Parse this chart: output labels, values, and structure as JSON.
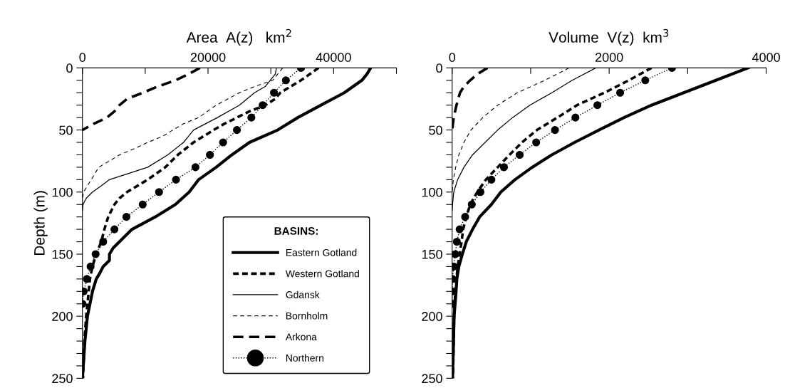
{
  "chart_data": [
    {
      "type": "line",
      "xlabel": "Area  A(z)   km$^{2}$",
      "ylabel": "Depth (m)",
      "legend_title": "BASINS:",
      "legend": "bottom right",
      "grid": false,
      "xlim": [
        0,
        50000
      ],
      "xticks": [
        0,
        {
          "value": 10000,
          "label": null
        },
        20000,
        {
          "value": 30000,
          "label": null
        },
        40000,
        {
          "value": 50000,
          "label": null
        }
      ],
      "ylim": [
        250,
        0
      ],
      "yticks": [
        0,
        {
          "value": 10,
          "label": null
        },
        {
          "value": 20,
          "label": null
        },
        {
          "value": 30,
          "label": null
        },
        {
          "value": 40,
          "label": null
        },
        50,
        {
          "value": 60,
          "label": null
        },
        {
          "value": 70,
          "label": null
        },
        {
          "value": 80,
          "label": null
        },
        {
          "value": 90,
          "label": null
        },
        100,
        {
          "value": 110,
          "label": null
        },
        {
          "value": 120,
          "label": null
        },
        {
          "value": 130,
          "label": null
        },
        {
          "value": 140,
          "label": null
        },
        150,
        {
          "value": 160,
          "label": null
        },
        {
          "value": 170,
          "label": null
        },
        {
          "value": 180,
          "label": null
        },
        {
          "value": 190,
          "label": null
        },
        200,
        {
          "value": 210,
          "label": null
        },
        {
          "value": 220,
          "label": null
        },
        {
          "value": 230,
          "label": null
        },
        {
          "value": 240,
          "label": null
        },
        250
      ],
      "series": [
        {
          "name": "Eastern Gotland",
          "color": "#000000",
          "line_style": "solid",
          "marker": "none",
          "x": [
            45900,
            45300,
            44500,
            41700,
            38000,
            34300,
            31100,
            26600,
            23800,
            21300,
            18500,
            17000,
            14800,
            11600,
            7900,
            5900,
            4900,
            4300,
            4300,
            3300,
            2800,
            2200,
            1600,
            1200,
            800,
            400,
            0
          ],
          "values": [
            0,
            5,
            10,
            20,
            30,
            40,
            50,
            60,
            70,
            80,
            90,
            100,
            110,
            120,
            130,
            140,
            145,
            150,
            155,
            160,
            165,
            170,
            180,
            190,
            200,
            220,
            250
          ]
        },
        {
          "name": "Western Gotland",
          "color": "#000000",
          "line_style": "dashed",
          "marker": "none",
          "x": [
            37600,
            34800,
            31500,
            30700,
            29100,
            26600,
            24600,
            22600,
            20900,
            17700,
            15200,
            13200,
            10400,
            7100,
            5900,
            5100,
            4100,
            3500,
            3000,
            2200,
            1600,
            1200,
            1000,
            600,
            300,
            100
          ],
          "values": [
            0,
            10,
            20,
            25,
            30,
            35,
            40,
            45,
            50,
            60,
            70,
            80,
            90,
            100,
            105,
            110,
            120,
            130,
            140,
            150,
            160,
            170,
            180,
            200,
            220,
            250
          ]
        },
        {
          "name": "Gdansk",
          "color": "#000000",
          "line_style": "solid",
          "marker": "none",
          "x": [
            30900,
            30700,
            29900,
            29100,
            27400,
            25000,
            21500,
            17700,
            16900,
            16100,
            13600,
            10400,
            4300,
            3000,
            1600,
            600,
            100,
            0
          ],
          "values": [
            0,
            5,
            10,
            15,
            20,
            30,
            40,
            50,
            55,
            60,
            70,
            80,
            90,
            95,
            100,
            105,
            110,
            115
          ]
        },
        {
          "name": "Bornholm",
          "color": "#000000",
          "line_style": "dashed",
          "marker": "none",
          "x": [
            31900,
            30300,
            27400,
            25000,
            21300,
            18500,
            16100,
            14400,
            12800,
            10400,
            8300,
            5900,
            4300,
            2600,
            1400,
            200,
            0
          ],
          "values": [
            0,
            10,
            15,
            20,
            30,
            40,
            45,
            50,
            55,
            60,
            65,
            70,
            75,
            80,
            90,
            100,
            105
          ]
        },
        {
          "name": "Arkona",
          "color": "#000000",
          "line_style": "dashed",
          "marker": "none",
          "x": [
            18700,
            16900,
            14800,
            12000,
            9600,
            7100,
            5900,
            5100,
            3900,
            1800,
            0
          ],
          "values": [
            0,
            5,
            10,
            15,
            20,
            25,
            30,
            35,
            40,
            45,
            50
          ]
        },
        {
          "name": "Northern",
          "color": "#000000",
          "line_style": "dotted",
          "marker": "circle",
          "x": [
            34800,
            32400,
            30500,
            28700,
            26900,
            24600,
            22400,
            20300,
            18000,
            14900,
            12200,
            9600,
            7000,
            5100,
            3300,
            2100,
            1300,
            700,
            200,
            0
          ],
          "values": [
            0,
            10,
            20,
            30,
            40,
            50,
            60,
            70,
            80,
            90,
            100,
            110,
            120,
            130,
            140,
            150,
            160,
            170,
            180,
            190
          ]
        }
      ]
    },
    {
      "type": "line",
      "xlabel": "Volume  V(z)  km$^{3}$",
      "grid": false,
      "xlim": [
        0,
        4000
      ],
      "xticks": [
        0,
        {
          "value": 1000,
          "label": null
        },
        2000,
        {
          "value": 3000,
          "label": null
        },
        4000
      ],
      "ylim": [
        250,
        0
      ],
      "yticks": [
        0,
        {
          "value": 10,
          "label": null
        },
        {
          "value": 20,
          "label": null
        },
        {
          "value": 30,
          "label": null
        },
        {
          "value": 40,
          "label": null
        },
        50,
        {
          "value": 60,
          "label": null
        },
        {
          "value": 70,
          "label": null
        },
        {
          "value": 80,
          "label": null
        },
        {
          "value": 90,
          "label": null
        },
        100,
        {
          "value": 110,
          "label": null
        },
        {
          "value": 120,
          "label": null
        },
        {
          "value": 130,
          "label": null
        },
        {
          "value": 140,
          "label": null
        },
        150,
        {
          "value": 160,
          "label": null
        },
        {
          "value": 170,
          "label": null
        },
        {
          "value": 180,
          "label": null
        },
        {
          "value": 190,
          "label": null
        },
        200,
        {
          "value": 210,
          "label": null
        },
        {
          "value": 220,
          "label": null
        },
        {
          "value": 230,
          "label": null
        },
        {
          "value": 240,
          "label": null
        },
        250
      ],
      "series": [
        {
          "color": "#000000",
          "line_style": "solid",
          "marker": "none",
          "x": [
            3770,
            3360,
            2950,
            2540,
            2190,
            1870,
            1560,
            1270,
            1020,
            800,
            620,
            500,
            350,
            260,
            180,
            130,
            85,
            60,
            50,
            25,
            5
          ],
          "values": [
            0,
            10,
            20,
            30,
            40,
            50,
            60,
            70,
            80,
            90,
            100,
            110,
            120,
            130,
            140,
            150,
            160,
            170,
            180,
            200,
            250
          ]
        },
        {
          "color": "#000000",
          "line_style": "dashed",
          "marker": "none",
          "x": [
            2540,
            2250,
            1940,
            1590,
            1340,
            1080,
            890,
            730,
            580,
            430,
            320,
            230,
            180,
            140,
            120,
            95,
            70,
            40,
            25,
            10
          ],
          "values": [
            0,
            10,
            20,
            30,
            40,
            50,
            60,
            70,
            80,
            90,
            100,
            110,
            120,
            130,
            140,
            150,
            160,
            180,
            200,
            250
          ]
        },
        {
          "color": "#000000",
          "line_style": "solid",
          "marker": "none",
          "x": [
            1830,
            1530,
            1270,
            990,
            770,
            580,
            420,
            260,
            150,
            70,
            20,
            5,
            0
          ],
          "values": [
            0,
            10,
            20,
            30,
            40,
            50,
            60,
            70,
            80,
            90,
            100,
            110,
            115
          ]
        },
        {
          "color": "#000000",
          "line_style": "dashed",
          "marker": "none",
          "x": [
            1490,
            1180,
            830,
            580,
            390,
            240,
            150,
            85,
            45,
            15,
            0
          ],
          "values": [
            0,
            10,
            20,
            30,
            40,
            50,
            60,
            70,
            80,
            90,
            100
          ]
        },
        {
          "color": "#000000",
          "line_style": "dashed",
          "marker": "none",
          "x": [
            450,
            320,
            230,
            150,
            100,
            55,
            20,
            0
          ],
          "values": [
            0,
            5,
            10,
            15,
            20,
            30,
            40,
            50
          ]
        },
        {
          "color": "#000000",
          "line_style": "dotted",
          "marker": "circle",
          "x": [
            2800,
            2460,
            2140,
            1850,
            1570,
            1310,
            1070,
            860,
            660,
            500,
            360,
            250,
            165,
            95,
            60,
            40,
            20,
            5,
            0,
            0
          ],
          "values": [
            0,
            10,
            20,
            30,
            40,
            50,
            60,
            70,
            80,
            90,
            100,
            110,
            120,
            130,
            140,
            150,
            160,
            170,
            180,
            190
          ]
        }
      ]
    }
  ]
}
